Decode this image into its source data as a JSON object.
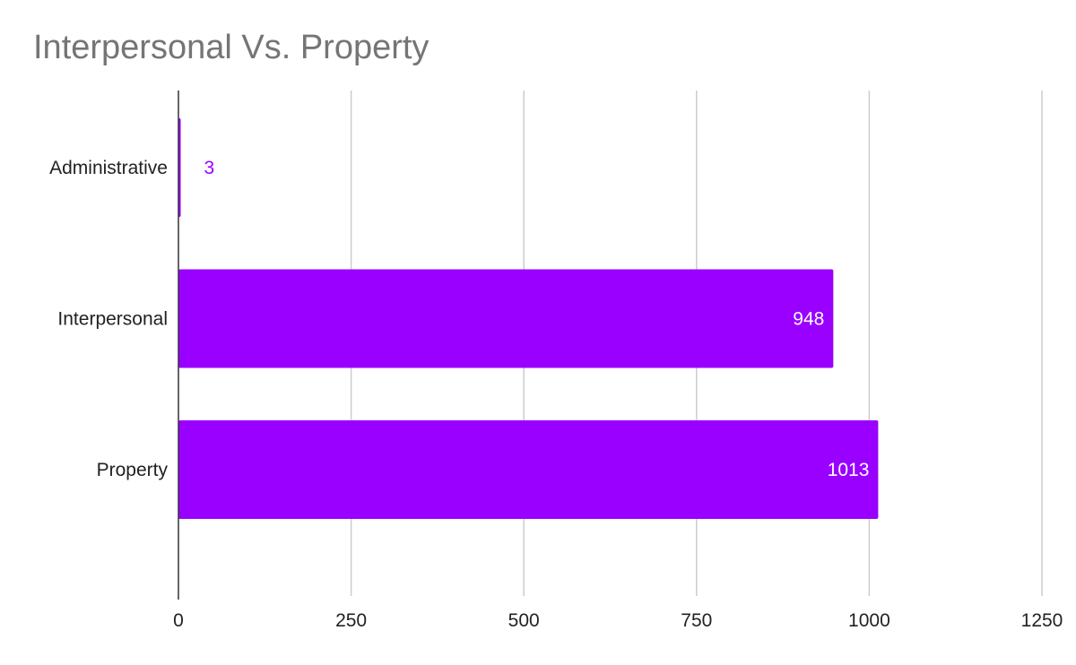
{
  "chart_data": {
    "type": "bar",
    "orientation": "horizontal",
    "title": "Interpersonal Vs. Property",
    "xlabel": "",
    "ylabel": "",
    "categories": [
      "Administrative",
      "Interpersonal",
      "Property"
    ],
    "values": [
      3,
      948,
      1013
    ],
    "data_labels": [
      "3",
      "948",
      "1013"
    ],
    "xlim": [
      0,
      1250
    ],
    "x_ticks": [
      0,
      250,
      500,
      750,
      1000,
      1250
    ],
    "x_tick_labels": [
      "0",
      "250",
      "500",
      "750",
      "1000",
      "1250"
    ],
    "grid": true,
    "legend": "none",
    "bar_color": "#9900ff",
    "label_inside_color": "#ffffff",
    "label_outside_color": "#9900ff",
    "grid_color": "#cccccc",
    "axis_color": "#333333",
    "title_color": "#757575"
  }
}
